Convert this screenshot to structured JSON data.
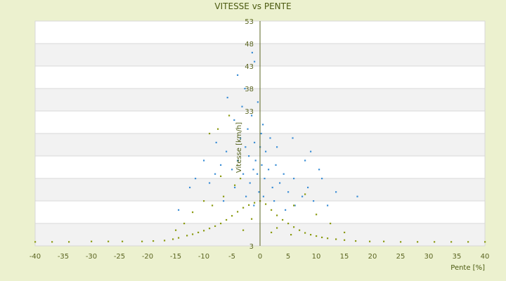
{
  "chart_data": {
    "type": "scatter",
    "title": "VITESSE vs PENTE",
    "xlabel": "Pente [%]",
    "ylabel": "Vitesse [km/h]",
    "xlim": [
      -40,
      40
    ],
    "ylim": [
      3,
      53
    ],
    "xticks": [
      -40,
      -35,
      -30,
      -25,
      -20,
      -15,
      -10,
      -5,
      0,
      5,
      10,
      15,
      20,
      25,
      30,
      35,
      40
    ],
    "yticks": [
      3,
      8,
      13,
      18,
      23,
      28,
      33,
      38,
      43,
      48,
      53
    ],
    "ytick_labels": [
      "3",
      "",
      "",
      "",
      "",
      "",
      "33",
      "38",
      "43",
      "48",
      "53"
    ],
    "band_fills": [
      "#ffffff",
      "#f2f2f2"
    ],
    "grid": true,
    "series": [
      {
        "marker_color": "#3d8fd6",
        "points": [
          [
            -1.2,
            20
          ],
          [
            -0.8,
            22
          ],
          [
            -0.5,
            19
          ],
          [
            0.3,
            21
          ],
          [
            0.8,
            18
          ],
          [
            -2.0,
            23
          ],
          [
            -1.8,
            17
          ],
          [
            1.5,
            20
          ],
          [
            2.2,
            16
          ],
          [
            -3.0,
            19
          ],
          [
            -2.6,
            25
          ],
          [
            -1.0,
            26
          ],
          [
            0.2,
            28
          ],
          [
            1.0,
            24
          ],
          [
            2.8,
            21
          ],
          [
            3.5,
            17
          ],
          [
            -4.0,
            22
          ],
          [
            -3.5,
            27
          ],
          [
            -2.2,
            29
          ],
          [
            0.5,
            30
          ],
          [
            -5.0,
            20
          ],
          [
            -4.5,
            16
          ],
          [
            4.2,
            19
          ],
          [
            5.0,
            15
          ],
          [
            6.0,
            18
          ],
          [
            -6.0,
            24
          ],
          [
            -7.0,
            21
          ],
          [
            -8.0,
            19
          ],
          [
            -9.0,
            17
          ],
          [
            7.5,
            14
          ],
          [
            8.5,
            16
          ],
          [
            9.5,
            13
          ],
          [
            -1.5,
            32
          ],
          [
            -3.2,
            34
          ],
          [
            -2.7,
            38
          ],
          [
            -4.0,
            41
          ],
          [
            -1.0,
            44
          ],
          [
            -1.4,
            46
          ],
          [
            -5.8,
            36
          ],
          [
            -4.6,
            31
          ],
          [
            0.0,
            25
          ],
          [
            1.8,
            27
          ],
          [
            3.0,
            25
          ],
          [
            -0.2,
            15
          ],
          [
            0.6,
            14
          ],
          [
            2.5,
            13
          ],
          [
            -2.5,
            14
          ],
          [
            -10.0,
            22
          ],
          [
            -11.5,
            18
          ],
          [
            -12.5,
            16
          ],
          [
            -14.5,
            11
          ],
          [
            11.0,
            18
          ],
          [
            12.0,
            12
          ],
          [
            13.5,
            15
          ],
          [
            17.3,
            14
          ],
          [
            -1.1,
            12
          ],
          [
            4.5,
            11
          ],
          [
            6.2,
            12
          ],
          [
            -6.5,
            13
          ],
          [
            8.0,
            22
          ],
          [
            9.0,
            24
          ],
          [
            10.5,
            20
          ],
          [
            -0.4,
            35
          ],
          [
            -7.8,
            26
          ],
          [
            5.8,
            27
          ]
        ]
      },
      {
        "marker_color": "#8a9a10",
        "points": [
          [
            -40.0,
            3.9
          ],
          [
            -37.0,
            3.9
          ],
          [
            -34.0,
            3.9
          ],
          [
            -30.0,
            4.0
          ],
          [
            -27.0,
            4.0
          ],
          [
            -24.5,
            4.0
          ],
          [
            -21.0,
            4.0
          ],
          [
            -19.0,
            4.1
          ],
          [
            -17.0,
            4.2
          ],
          [
            -15.5,
            4.5
          ],
          [
            -14.5,
            4.8
          ],
          [
            -13.0,
            5.3
          ],
          [
            -12.0,
            5.6
          ],
          [
            -11.0,
            6.0
          ],
          [
            -10.0,
            6.4
          ],
          [
            -9.0,
            6.9
          ],
          [
            -8.0,
            7.4
          ],
          [
            -7.0,
            8.0
          ],
          [
            -6.0,
            8.8
          ],
          [
            -5.0,
            9.7
          ],
          [
            -4.0,
            10.6
          ],
          [
            -3.0,
            11.5
          ],
          [
            -2.0,
            12.1
          ],
          [
            -1.0,
            12.6
          ],
          [
            0.0,
            13.0
          ],
          [
            1.0,
            12.3
          ],
          [
            2.0,
            11.0
          ],
          [
            3.0,
            9.8
          ],
          [
            4.0,
            8.8
          ],
          [
            5.0,
            8.0
          ],
          [
            6.0,
            7.2
          ],
          [
            7.0,
            6.5
          ],
          [
            8.0,
            5.9
          ],
          [
            9.0,
            5.5
          ],
          [
            10.0,
            5.2
          ],
          [
            11.0,
            4.9
          ],
          [
            12.0,
            4.7
          ],
          [
            13.5,
            4.5
          ],
          [
            15.0,
            4.3
          ],
          [
            17.0,
            4.1
          ],
          [
            19.5,
            4.0
          ],
          [
            22.0,
            4.0
          ],
          [
            25.0,
            3.9
          ],
          [
            28.0,
            3.9
          ],
          [
            31.0,
            3.9
          ],
          [
            34.0,
            3.9
          ],
          [
            37.0,
            3.9
          ],
          [
            40.0,
            3.9
          ],
          [
            -8.5,
            12.0
          ],
          [
            -6.5,
            14.0
          ],
          [
            -4.5,
            16.5
          ],
          [
            -3.5,
            18.0
          ],
          [
            -12.0,
            10.5
          ],
          [
            -10.0,
            13.0
          ],
          [
            -7.0,
            18.5
          ],
          [
            -9.0,
            28.0
          ],
          [
            -7.5,
            29.0
          ],
          [
            -5.5,
            32.0
          ],
          [
            6.0,
            12.0
          ],
          [
            8.0,
            14.5
          ],
          [
            10.0,
            10.0
          ],
          [
            12.5,
            8.0
          ],
          [
            15.0,
            6.0
          ],
          [
            3.0,
            7.0
          ],
          [
            5.5,
            5.5
          ],
          [
            -13.5,
            8.0
          ],
          [
            -15.0,
            6.5
          ],
          [
            -3.0,
            6.5
          ],
          [
            -1.5,
            9.0
          ],
          [
            2.0,
            6.0
          ]
        ]
      }
    ]
  }
}
